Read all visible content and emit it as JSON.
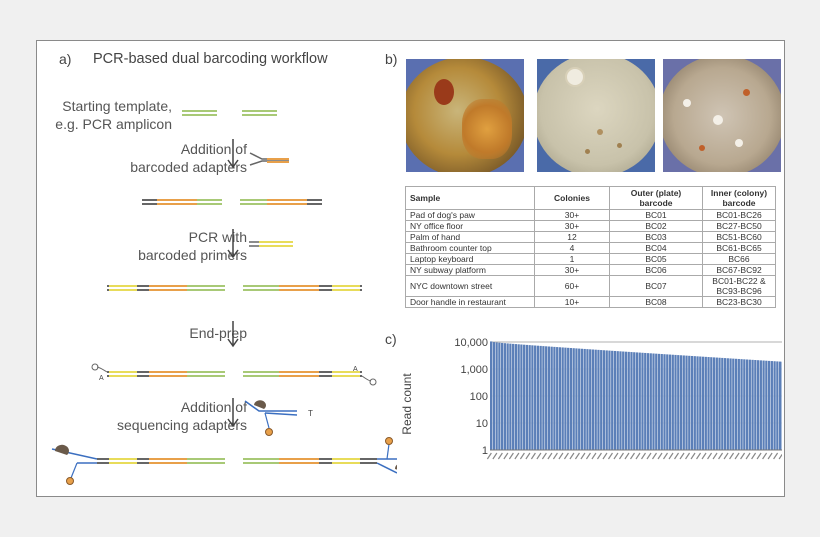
{
  "panel_a": {
    "label": "a)",
    "title": "PCR-based dual barcoding workflow",
    "steps": {
      "template_line1": "Starting template,",
      "template_line2": "e.g. PCR amplicon",
      "addition_line1": "Addition of",
      "addition_line2": "barcoded adapters",
      "pcr_line1": "PCR with",
      "pcr_line2": "barcoded primers",
      "endprep": "End-prep",
      "seq_line1": "Addition of",
      "seq_line2": "sequencing adapters"
    },
    "tail_a": "A",
    "tail_t": "T"
  },
  "panel_b": {
    "label": "b)",
    "table": {
      "headers": [
        "Sample",
        "Colonies",
        "Outer (plate) barcode",
        "Inner (colony) barcode"
      ],
      "rows": [
        [
          "Pad of dog's paw",
          "30+",
          "BC01",
          "BC01-BC26"
        ],
        [
          "NY office floor",
          "30+",
          "BC02",
          "BC27-BC50"
        ],
        [
          "Palm of hand",
          "12",
          "BC03",
          "BC51-BC60"
        ],
        [
          "Bathroom counter top",
          "4",
          "BC04",
          "BC61-BC65"
        ],
        [
          "Laptop keyboard",
          "1",
          "BC05",
          "BC66"
        ],
        [
          "NY subway platform",
          "30+",
          "BC06",
          "BC67-BC92"
        ],
        [
          "NYC downtown street",
          "60+",
          "BC07",
          "BC01-BC22 & BC93-BC96"
        ],
        [
          "Door handle in restaurant",
          "10+",
          "BC08",
          "BC23-BC30"
        ]
      ]
    }
  },
  "panel_c": {
    "label": "c)",
    "chart_data": {
      "type": "bar",
      "ylabel": "Read count",
      "yscale": "log",
      "ylim": [
        1,
        10000
      ],
      "yticks": [
        "1",
        "10",
        "100",
        "1,000",
        "10,000"
      ],
      "n_bars": 117,
      "values_start": 10500,
      "values_end": 1600,
      "bar_color": "#5b7fb8"
    }
  }
}
